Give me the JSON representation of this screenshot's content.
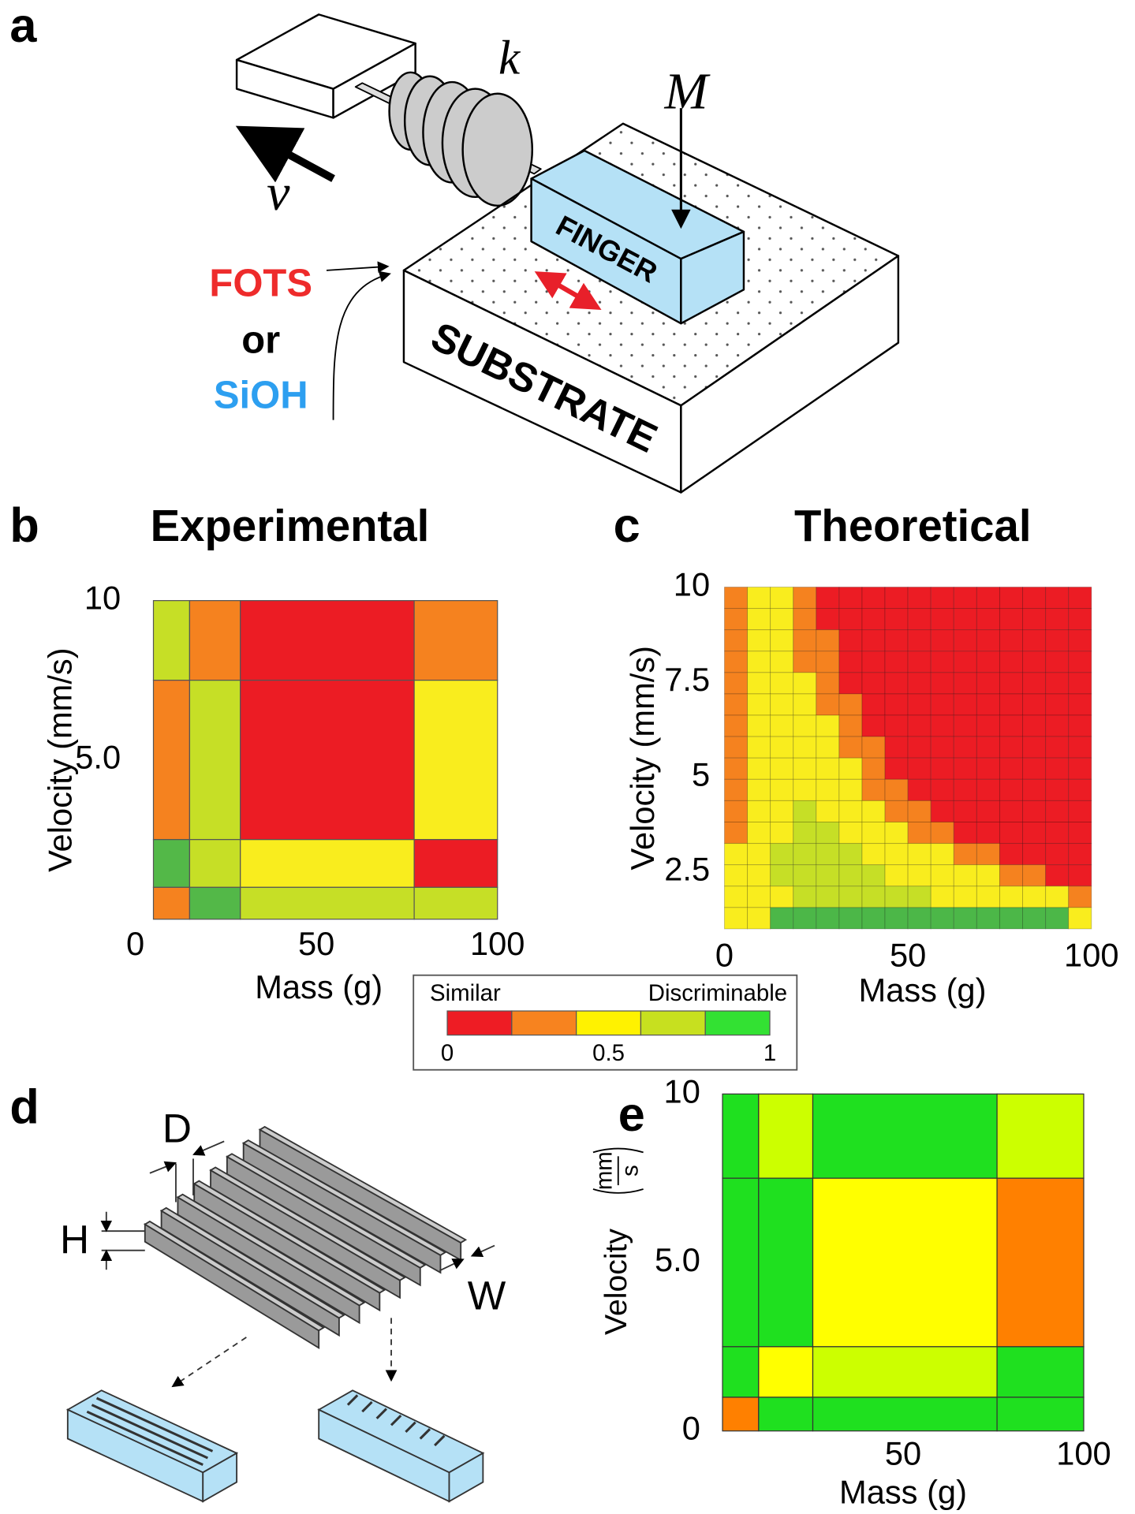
{
  "panel_labels": [
    "a",
    "b",
    "c",
    "d",
    "e"
  ],
  "schematic": {
    "spring_constant": "k",
    "mass": "M",
    "velocity": "v",
    "finger": "FINGER",
    "substrate": "SUBSTRATE",
    "coating_1": "FOTS",
    "or": "or",
    "coating_2": "SiOH"
  },
  "texture": {
    "depth": "D",
    "height": "H",
    "width": "W"
  },
  "colorbar": {
    "left_label": "Similar",
    "right_label": "Discriminable",
    "range": [
      0,
      1
    ],
    "ticks": [
      0,
      0.5,
      1
    ],
    "colors": [
      "#ee1c24",
      "#f7831f",
      "#fff200",
      "#c7e01f",
      "#33e133"
    ]
  },
  "chart_data": [
    {
      "type": "heatmap",
      "title": "Experimental",
      "xlabel": "Mass (g)",
      "ylabel": "Velocity (mm/s)",
      "xlim": [
        0,
        100
      ],
      "ylim": [
        0,
        10
      ],
      "xticks": [
        0,
        50,
        100
      ],
      "yticks": [
        {
          "value": 5,
          "label": "5.0"
        },
        10
      ],
      "x_edges": [
        5,
        15,
        29,
        77,
        100
      ],
      "y_edges": [
        10,
        7.5,
        2.5,
        1,
        0
      ],
      "zlim": [
        0,
        1
      ],
      "colors": [
        "#ec1c24",
        "#f5821f",
        "#f9ed1e",
        "#c6df26",
        "#53b848"
      ],
      "z": [
        [
          0.7,
          0.3,
          0.1,
          0.3
        ],
        [
          0.3,
          0.7,
          0.1,
          0.5
        ],
        [
          0.9,
          0.7,
          0.5,
          0.1
        ],
        [
          0.3,
          0.9,
          0.7,
          0.7
        ]
      ]
    },
    {
      "type": "heatmap",
      "title": "Theoretical",
      "xlabel": "Mass (g)",
      "ylabel": "Velocity (mm/s)",
      "xlim": [
        0,
        100
      ],
      "ylim": [
        1,
        10
      ],
      "xticks": [
        0,
        50,
        100
      ],
      "yticks": [
        2.5,
        5,
        7.5,
        10
      ],
      "zlim": [
        0,
        1
      ],
      "grid": true,
      "colors": [
        "#ec1c24",
        "#f5821f",
        "#f9ed1e",
        "#c6df26",
        "#4cb748"
      ],
      "z": [
        [
          0.3,
          0.5,
          0.5,
          0.3,
          0.1,
          0.1,
          0.1,
          0.1,
          0.1,
          0.1,
          0.1,
          0.1,
          0.1,
          0.1,
          0.1,
          0.1
        ],
        [
          0.3,
          0.5,
          0.5,
          0.3,
          0.1,
          0.1,
          0.1,
          0.1,
          0.1,
          0.1,
          0.1,
          0.1,
          0.1,
          0.1,
          0.1,
          0.1
        ],
        [
          0.3,
          0.5,
          0.5,
          0.3,
          0.3,
          0.1,
          0.1,
          0.1,
          0.1,
          0.1,
          0.1,
          0.1,
          0.1,
          0.1,
          0.1,
          0.1
        ],
        [
          0.3,
          0.5,
          0.5,
          0.3,
          0.3,
          0.1,
          0.1,
          0.1,
          0.1,
          0.1,
          0.1,
          0.1,
          0.1,
          0.1,
          0.1,
          0.1
        ],
        [
          0.3,
          0.5,
          0.5,
          0.5,
          0.3,
          0.1,
          0.1,
          0.1,
          0.1,
          0.1,
          0.1,
          0.1,
          0.1,
          0.1,
          0.1,
          0.1
        ],
        [
          0.3,
          0.5,
          0.5,
          0.5,
          0.3,
          0.3,
          0.1,
          0.1,
          0.1,
          0.1,
          0.1,
          0.1,
          0.1,
          0.1,
          0.1,
          0.1
        ],
        [
          0.3,
          0.5,
          0.5,
          0.5,
          0.5,
          0.3,
          0.1,
          0.1,
          0.1,
          0.1,
          0.1,
          0.1,
          0.1,
          0.1,
          0.1,
          0.1
        ],
        [
          0.3,
          0.5,
          0.5,
          0.5,
          0.5,
          0.3,
          0.3,
          0.1,
          0.1,
          0.1,
          0.1,
          0.1,
          0.1,
          0.1,
          0.1,
          0.1
        ],
        [
          0.3,
          0.5,
          0.5,
          0.5,
          0.5,
          0.5,
          0.3,
          0.1,
          0.1,
          0.1,
          0.1,
          0.1,
          0.1,
          0.1,
          0.1,
          0.1
        ],
        [
          0.3,
          0.5,
          0.5,
          0.5,
          0.5,
          0.5,
          0.3,
          0.3,
          0.1,
          0.1,
          0.1,
          0.1,
          0.1,
          0.1,
          0.1,
          0.1
        ],
        [
          0.3,
          0.5,
          0.5,
          0.7,
          0.5,
          0.5,
          0.5,
          0.3,
          0.3,
          0.1,
          0.1,
          0.1,
          0.1,
          0.1,
          0.1,
          0.1
        ],
        [
          0.3,
          0.5,
          0.5,
          0.7,
          0.7,
          0.5,
          0.5,
          0.5,
          0.3,
          0.3,
          0.1,
          0.1,
          0.1,
          0.1,
          0.1,
          0.1
        ],
        [
          0.5,
          0.5,
          0.7,
          0.7,
          0.7,
          0.7,
          0.5,
          0.5,
          0.5,
          0.5,
          0.3,
          0.3,
          0.1,
          0.1,
          0.1,
          0.1
        ],
        [
          0.5,
          0.5,
          0.7,
          0.7,
          0.7,
          0.7,
          0.7,
          0.5,
          0.5,
          0.5,
          0.5,
          0.5,
          0.3,
          0.3,
          0.1,
          0.1
        ],
        [
          0.5,
          0.5,
          0.5,
          0.7,
          0.7,
          0.7,
          0.7,
          0.7,
          0.7,
          0.5,
          0.5,
          0.5,
          0.5,
          0.5,
          0.5,
          0.3
        ],
        [
          0.5,
          0.5,
          0.9,
          0.9,
          0.9,
          0.9,
          0.9,
          0.9,
          0.9,
          0.9,
          0.9,
          0.9,
          0.9,
          0.9,
          0.9,
          0.5
        ]
      ]
    },
    {
      "type": "heatmap",
      "xlabel": "Mass (g)",
      "ylabel": "Velocity",
      "ylabel_units": {
        "numerator": "mm",
        "denominator": "s"
      },
      "xlim": [
        0,
        100
      ],
      "ylim": [
        0,
        10
      ],
      "xticks": [
        50,
        100
      ],
      "yticks": [
        0,
        {
          "value": 5,
          "label": "5.0"
        },
        10
      ],
      "x_edges": [
        0,
        10,
        25,
        76,
        100
      ],
      "y_edges": [
        10,
        7.5,
        2.5,
        1,
        0
      ],
      "zlim": [
        0,
        1
      ],
      "colors": [
        "#ff0000",
        "#ff8000",
        "#ffff00",
        "#ccff00",
        "#1fe01f"
      ],
      "z": [
        [
          0.9,
          0.7,
          0.9,
          0.7
        ],
        [
          0.9,
          0.9,
          0.5,
          0.3
        ],
        [
          0.9,
          0.5,
          0.7,
          0.9
        ],
        [
          0.3,
          0.9,
          0.9,
          0.9
        ]
      ]
    }
  ]
}
